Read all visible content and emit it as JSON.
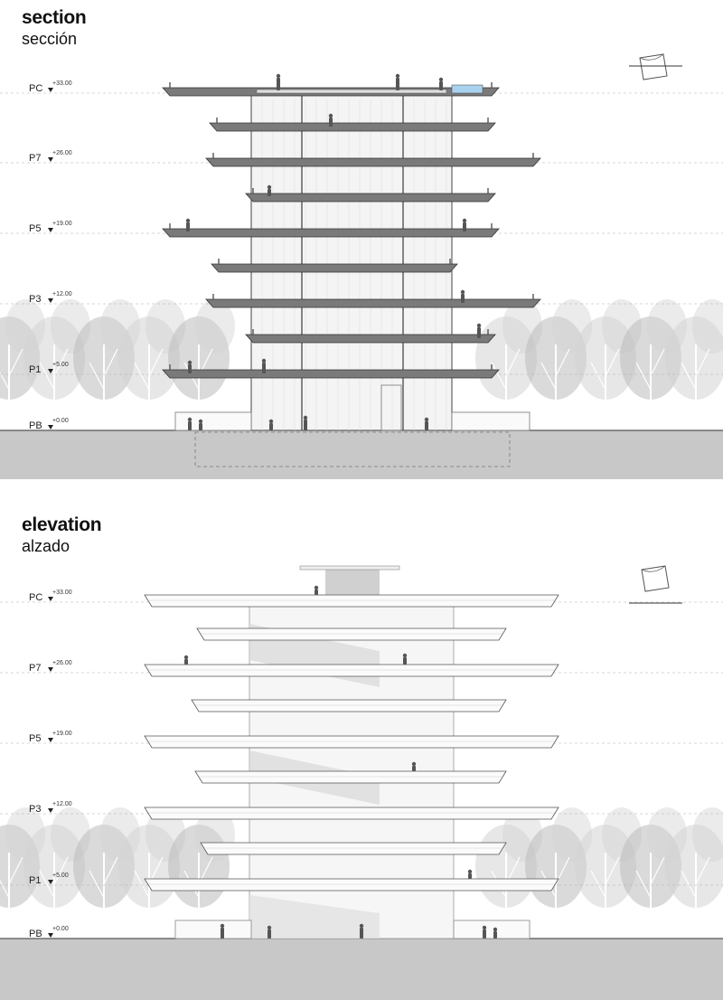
{
  "sections": {
    "section": {
      "title": "section",
      "subtitle": "sección"
    },
    "elevation": {
      "title": "elevation",
      "subtitle": "alzado"
    }
  },
  "levels": [
    {
      "name": "PC",
      "elev": "+33.00"
    },
    {
      "name": "P7",
      "elev": "+26.00"
    },
    {
      "name": "P5",
      "elev": "+19.00"
    },
    {
      "name": "P3",
      "elev": "+12.00"
    },
    {
      "name": "P1",
      "elev": "+5.00"
    },
    {
      "name": "PB",
      "elev": "+0.00"
    }
  ],
  "colors": {
    "ground": "#c8c8c8",
    "slab": "#7a7a7a",
    "tree": "#d3d3d3",
    "tree_dark": "#bcbcbc",
    "glass": "#a9d2ef",
    "line": "#444444"
  },
  "icons": [
    "north-arrow-icon",
    "level-marker-icon",
    "person-figure-icon",
    "tree-icon"
  ]
}
